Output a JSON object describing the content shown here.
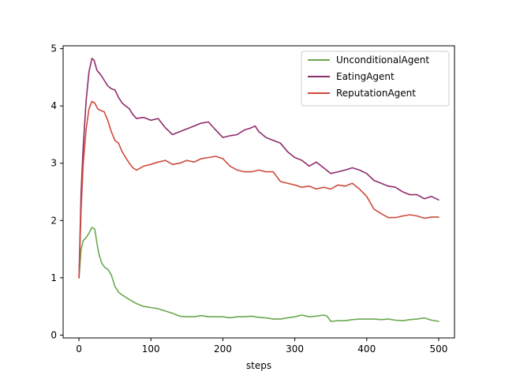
{
  "chart_data": {
    "type": "line",
    "title": "",
    "xlabel": "steps",
    "ylabel": "",
    "xlim": [
      -22,
      522
    ],
    "ylim": [
      -0.05,
      5.05
    ],
    "x_ticks": [
      0,
      100,
      200,
      300,
      400,
      500
    ],
    "y_ticks": [
      0,
      1,
      2,
      3,
      4,
      5
    ],
    "grid": false,
    "legend_placement": "top-right",
    "series": [
      {
        "name": "UnconditionalAgent",
        "color": "#6aa84f",
        "x": [
          0,
          3,
          6,
          10,
          14,
          18,
          22,
          25,
          28,
          32,
          36,
          40,
          45,
          50,
          55,
          60,
          70,
          80,
          90,
          100,
          110,
          120,
          130,
          140,
          150,
          160,
          170,
          180,
          190,
          200,
          210,
          220,
          230,
          240,
          250,
          260,
          270,
          280,
          290,
          300,
          310,
          320,
          330,
          340,
          345,
          350,
          360,
          370,
          380,
          390,
          400,
          410,
          420,
          430,
          440,
          450,
          460,
          470,
          480,
          490,
          500
        ],
        "y": [
          1.0,
          1.5,
          1.65,
          1.7,
          1.78,
          1.88,
          1.85,
          1.6,
          1.4,
          1.25,
          1.18,
          1.15,
          1.05,
          0.85,
          0.75,
          0.7,
          0.62,
          0.55,
          0.5,
          0.48,
          0.46,
          0.42,
          0.38,
          0.33,
          0.32,
          0.32,
          0.34,
          0.32,
          0.32,
          0.32,
          0.3,
          0.32,
          0.32,
          0.33,
          0.31,
          0.3,
          0.28,
          0.28,
          0.3,
          0.32,
          0.35,
          0.32,
          0.33,
          0.35,
          0.33,
          0.24,
          0.25,
          0.25,
          0.27,
          0.28,
          0.28,
          0.28,
          0.27,
          0.28,
          0.26,
          0.25,
          0.27,
          0.28,
          0.3,
          0.26,
          0.24
        ]
      },
      {
        "name": "EatingAgent",
        "color": "#8e2c6b",
        "x": [
          0,
          3,
          6,
          10,
          14,
          18,
          21,
          25,
          30,
          35,
          40,
          45,
          50,
          55,
          60,
          65,
          70,
          75,
          80,
          90,
          100,
          110,
          115,
          120,
          130,
          140,
          150,
          160,
          170,
          180,
          190,
          200,
          210,
          220,
          230,
          240,
          245,
          250,
          260,
          270,
          280,
          290,
          300,
          310,
          320,
          330,
          340,
          350,
          360,
          370,
          380,
          390,
          400,
          410,
          420,
          430,
          440,
          450,
          460,
          470,
          480,
          490,
          500
        ],
        "y": [
          1.0,
          2.5,
          3.3,
          4.1,
          4.6,
          4.83,
          4.8,
          4.62,
          4.55,
          4.45,
          4.35,
          4.3,
          4.28,
          4.15,
          4.05,
          4.0,
          3.95,
          3.85,
          3.78,
          3.8,
          3.75,
          3.78,
          3.7,
          3.62,
          3.5,
          3.55,
          3.6,
          3.65,
          3.7,
          3.72,
          3.58,
          3.45,
          3.48,
          3.5,
          3.58,
          3.62,
          3.65,
          3.55,
          3.45,
          3.4,
          3.35,
          3.2,
          3.1,
          3.05,
          2.95,
          3.02,
          2.92,
          2.82,
          2.85,
          2.88,
          2.92,
          2.88,
          2.82,
          2.7,
          2.65,
          2.6,
          2.58,
          2.5,
          2.45,
          2.45,
          2.38,
          2.42,
          2.36
        ]
      },
      {
        "name": "ReputationAgent",
        "color": "#cf4a3a",
        "x": [
          0,
          3,
          6,
          10,
          14,
          18,
          22,
          26,
          30,
          35,
          40,
          45,
          50,
          55,
          60,
          65,
          70,
          75,
          80,
          90,
          100,
          110,
          120,
          130,
          140,
          150,
          160,
          170,
          180,
          190,
          200,
          210,
          220,
          230,
          240,
          250,
          260,
          270,
          280,
          290,
          300,
          310,
          320,
          330,
          340,
          350,
          360,
          370,
          380,
          390,
          400,
          410,
          420,
          430,
          440,
          450,
          460,
          470,
          480,
          490,
          500
        ],
        "y": [
          1.0,
          2.2,
          3.0,
          3.6,
          3.95,
          4.08,
          4.05,
          3.95,
          3.92,
          3.9,
          3.75,
          3.55,
          3.4,
          3.35,
          3.2,
          3.1,
          3.0,
          2.92,
          2.88,
          2.95,
          2.98,
          3.02,
          3.05,
          2.98,
          3.0,
          3.05,
          3.02,
          3.08,
          3.1,
          3.12,
          3.08,
          2.95,
          2.88,
          2.85,
          2.85,
          2.88,
          2.85,
          2.85,
          2.68,
          2.65,
          2.62,
          2.58,
          2.6,
          2.55,
          2.58,
          2.55,
          2.62,
          2.6,
          2.65,
          2.55,
          2.42,
          2.2,
          2.12,
          2.05,
          2.05,
          2.08,
          2.1,
          2.08,
          2.04,
          2.06,
          2.06
        ]
      }
    ]
  }
}
